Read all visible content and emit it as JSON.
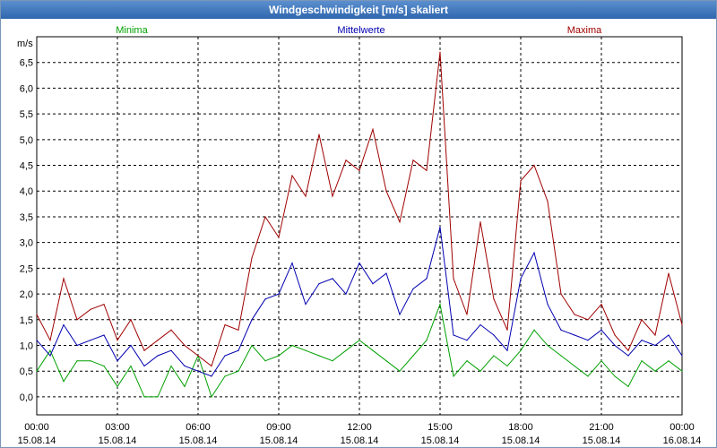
{
  "chart_data": {
    "type": "line",
    "title": "Windgeschwindigkeit [m/s] skaliert",
    "ylabel": "m/s",
    "ylim": [
      -0.35,
      7.0
    ],
    "yticks": [
      "0,0",
      "0,5",
      "1,0",
      "1,5",
      "2,0",
      "2,5",
      "3,0",
      "3,5",
      "4,0",
      "4,5",
      "5,0",
      "5,5",
      "6,0",
      "6,5"
    ],
    "xlim": [
      0,
      24
    ],
    "xticks": [
      {
        "time": "00:00",
        "date": "15.08.14"
      },
      {
        "time": "03:00",
        "date": "15.08.14"
      },
      {
        "time": "06:00",
        "date": "15.08.14"
      },
      {
        "time": "09:00",
        "date": "15.08.14"
      },
      {
        "time": "12:00",
        "date": "15.08.14"
      },
      {
        "time": "15:00",
        "date": "15.08.14"
      },
      {
        "time": "18:00",
        "date": "15.08.14"
      },
      {
        "time": "21:00",
        "date": "15.08.14"
      },
      {
        "time": "00:00",
        "date": "16.08.14"
      }
    ],
    "grid": true,
    "legend": [
      "Minima",
      "Mittelwerte",
      "Maxima"
    ],
    "series": [
      {
        "name": "Minima",
        "color": "#00a000",
        "x": [
          0,
          0.5,
          1,
          1.5,
          2,
          2.5,
          3,
          3.5,
          4,
          4.5,
          5,
          5.5,
          6,
          6.5,
          7,
          7.5,
          8,
          8.5,
          9,
          9.5,
          10,
          10.5,
          11,
          11.5,
          12,
          12.5,
          13,
          13.5,
          14,
          14.5,
          15,
          15.5,
          16,
          16.5,
          17,
          17.5,
          18,
          18.5,
          19,
          19.5,
          20,
          20.5,
          21,
          21.5,
          22,
          22.5,
          23,
          23.5,
          24
        ],
        "y": [
          0.5,
          0.9,
          0.3,
          0.7,
          0.7,
          0.6,
          0.2,
          0.6,
          0.0,
          0.0,
          0.6,
          0.2,
          0.8,
          0.0,
          0.4,
          0.5,
          1.0,
          0.7,
          0.8,
          1.0,
          0.9,
          0.8,
          0.7,
          0.9,
          1.1,
          0.9,
          0.7,
          0.5,
          0.8,
          1.1,
          1.8,
          0.4,
          0.7,
          0.5,
          0.8,
          0.6,
          0.9,
          1.3,
          1.0,
          0.8,
          0.6,
          0.4,
          0.7,
          0.4,
          0.2,
          0.7,
          0.5,
          0.7,
          0.5
        ]
      },
      {
        "name": "Mittelwerte",
        "color": "#0000b0",
        "x": [
          0,
          0.5,
          1,
          1.5,
          2,
          2.5,
          3,
          3.5,
          4,
          4.5,
          5,
          5.5,
          6,
          6.5,
          7,
          7.5,
          8,
          8.5,
          9,
          9.5,
          10,
          10.5,
          11,
          11.5,
          12,
          12.5,
          13,
          13.5,
          14,
          14.5,
          15,
          15.5,
          16,
          16.5,
          17,
          17.5,
          18,
          18.5,
          19,
          19.5,
          20,
          20.5,
          21,
          21.5,
          22,
          22.5,
          23,
          23.5,
          24
        ],
        "y": [
          1.1,
          0.8,
          1.4,
          1.0,
          1.1,
          1.2,
          0.7,
          1.0,
          0.6,
          0.8,
          0.9,
          0.6,
          0.5,
          0.4,
          0.8,
          0.9,
          1.5,
          1.9,
          2.0,
          2.6,
          1.8,
          2.2,
          2.3,
          2.0,
          2.6,
          2.2,
          2.4,
          1.6,
          2.1,
          2.3,
          3.3,
          1.2,
          1.1,
          1.4,
          1.2,
          0.9,
          2.3,
          2.8,
          1.8,
          1.3,
          1.2,
          1.1,
          1.3,
          1.0,
          0.8,
          1.1,
          1.0,
          1.2,
          0.8
        ]
      },
      {
        "name": "Maxima",
        "color": "#a00000",
        "x": [
          0,
          0.5,
          1,
          1.5,
          2,
          2.5,
          3,
          3.5,
          4,
          4.5,
          5,
          5.5,
          6,
          6.5,
          7,
          7.5,
          8,
          8.5,
          9,
          9.5,
          10,
          10.5,
          11,
          11.5,
          12,
          12.5,
          13,
          13.5,
          14,
          14.5,
          15,
          15.5,
          16,
          16.5,
          17,
          17.5,
          18,
          18.5,
          19,
          19.5,
          20,
          20.5,
          21,
          21.5,
          22,
          22.5,
          23,
          23.5,
          24
        ],
        "y": [
          1.6,
          1.1,
          2.3,
          1.5,
          1.7,
          1.8,
          1.1,
          1.5,
          0.9,
          1.1,
          1.3,
          1.0,
          0.8,
          0.6,
          1.4,
          1.3,
          2.7,
          3.5,
          3.1,
          4.3,
          3.9,
          5.1,
          3.9,
          4.6,
          4.4,
          5.2,
          4.0,
          3.4,
          4.6,
          4.4,
          6.7,
          2.3,
          1.6,
          3.4,
          1.9,
          1.3,
          4.2,
          4.5,
          3.8,
          2.0,
          1.6,
          1.5,
          1.8,
          1.2,
          0.9,
          1.5,
          1.2,
          2.4,
          1.4
        ]
      }
    ]
  }
}
